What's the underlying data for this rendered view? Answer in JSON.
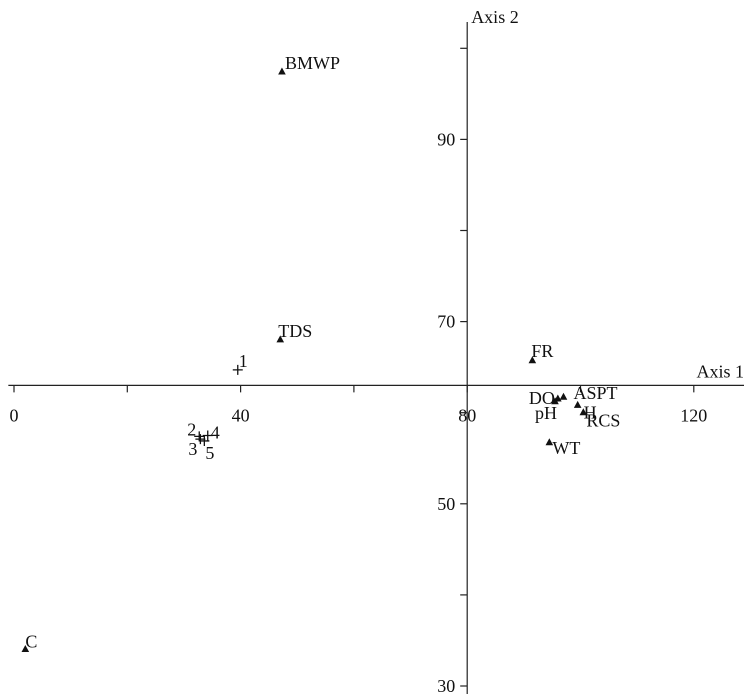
{
  "chart_data": {
    "type": "scatter",
    "title": "",
    "xlabel": "Axis 1",
    "ylabel": "Axis 2",
    "xlim": [
      -1,
      130
    ],
    "ylim": [
      29,
      103
    ],
    "axes_cross": {
      "x": 80,
      "y": 63
    },
    "x_ticks": [
      0,
      20,
      40,
      60,
      80,
      100,
      120
    ],
    "x_tick_labels": [
      "0",
      "",
      "40",
      "",
      "80",
      "",
      "120"
    ],
    "y_ticks": [
      30,
      40,
      50,
      60,
      70,
      80,
      90,
      100
    ],
    "y_tick_labels": [
      "30",
      "",
      "50",
      "",
      "70",
      "",
      "90",
      ""
    ],
    "series": [
      {
        "marker": "triangle",
        "points": [
          {
            "label": "BMWP",
            "x": 47.3,
            "y": 97.4
          },
          {
            "label": "TDS",
            "x": 47.0,
            "y": 68.0
          },
          {
            "label": "FR",
            "x": 91.5,
            "y": 65.7
          },
          {
            "label": "DO",
            "x": 96.0,
            "y": 61.5
          },
          {
            "label": "ASPT",
            "x": 97.0,
            "y": 61.7
          },
          {
            "label": "pH",
            "x": 95.5,
            "y": 61.2
          },
          {
            "label": "H",
            "x": 99.5,
            "y": 60.8
          },
          {
            "label": "RCS",
            "x": 100.5,
            "y": 60.0
          },
          {
            "label": "WT",
            "x": 94.5,
            "y": 56.7
          },
          {
            "label": "C",
            "x": 2.0,
            "y": 34.0
          }
        ]
      },
      {
        "marker": "cross",
        "points": [
          {
            "label": "1",
            "x": 39.5,
            "y": 64.7
          },
          {
            "label": "2",
            "x": 32.7,
            "y": 57.4
          },
          {
            "label": "3",
            "x": 32.9,
            "y": 57.1
          },
          {
            "label": "4",
            "x": 34.2,
            "y": 57.5
          },
          {
            "label": "5",
            "x": 33.6,
            "y": 56.9
          }
        ]
      }
    ]
  }
}
